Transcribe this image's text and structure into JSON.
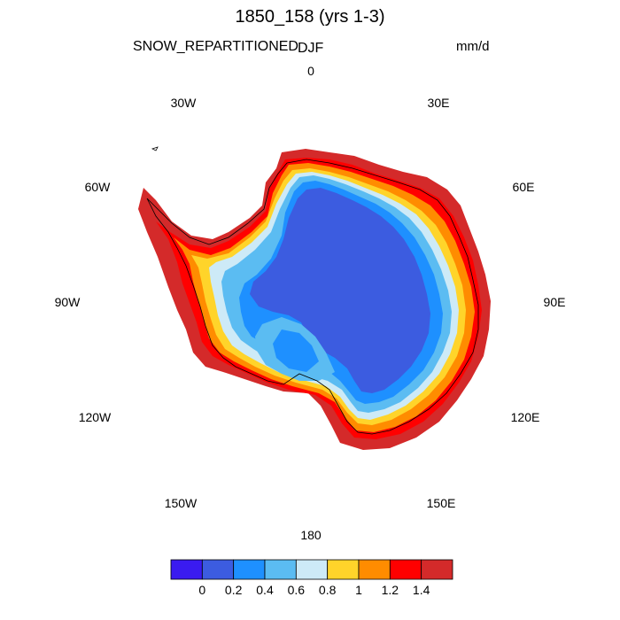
{
  "title": "1850_158 (yrs 1-3)",
  "variable": "SNOW_REPARTITIONED",
  "season": "DJF",
  "units": "mm/d",
  "longitude_labels": [
    "0",
    "30E",
    "60E",
    "90E",
    "120E",
    "150E",
    "180",
    "150W",
    "120W",
    "90W",
    "60W",
    "30W"
  ],
  "colorbar": {
    "colors": [
      "#3a1bf0",
      "#3c5ce0",
      "#1e90ff",
      "#5bbcf2",
      "#cdeaf7",
      "#ffd42a",
      "#ff8c00",
      "#ff0000",
      "#d42a2a"
    ],
    "labels": [
      "0",
      "0.2",
      "0.4",
      "0.6",
      "0.8",
      "1",
      "1.2",
      "1.4"
    ]
  }
}
